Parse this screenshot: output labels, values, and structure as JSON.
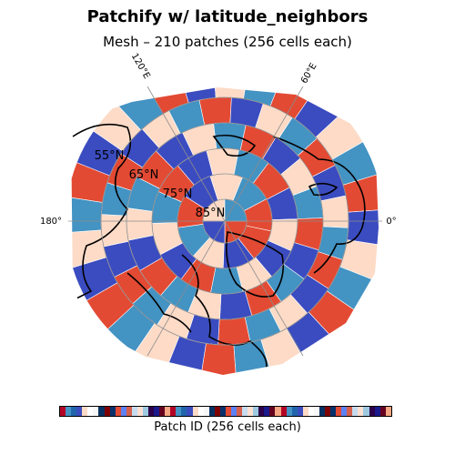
{
  "title": "Patchify w/ latitude_neighbors",
  "subtitle": "Mesh – 210 patches (256 cells each)",
  "meridian_labels": [
    "120°E",
    "60°E",
    "180°",
    "0°"
  ],
  "latitude_labels": [
    "55°N",
    "65°N",
    "75°N",
    "85°N"
  ],
  "colorbar": {
    "label": "Patch ID (256 cells each)",
    "colors": [
      "#b40426",
      "#3b4cc0",
      "#f7f7f7",
      "#08306b",
      "#d6604d",
      "#9ecae1",
      "#67001f",
      "#4393c3",
      "#fddbc7",
      "#053061",
      "#e34a33",
      "#c6dbef",
      "#2d004b",
      "#f4a582",
      "#2166ac",
      "#ffffff",
      "#7f0000",
      "#5e81f4",
      "#fee0d2",
      "#1a1a8c"
    ]
  }
}
